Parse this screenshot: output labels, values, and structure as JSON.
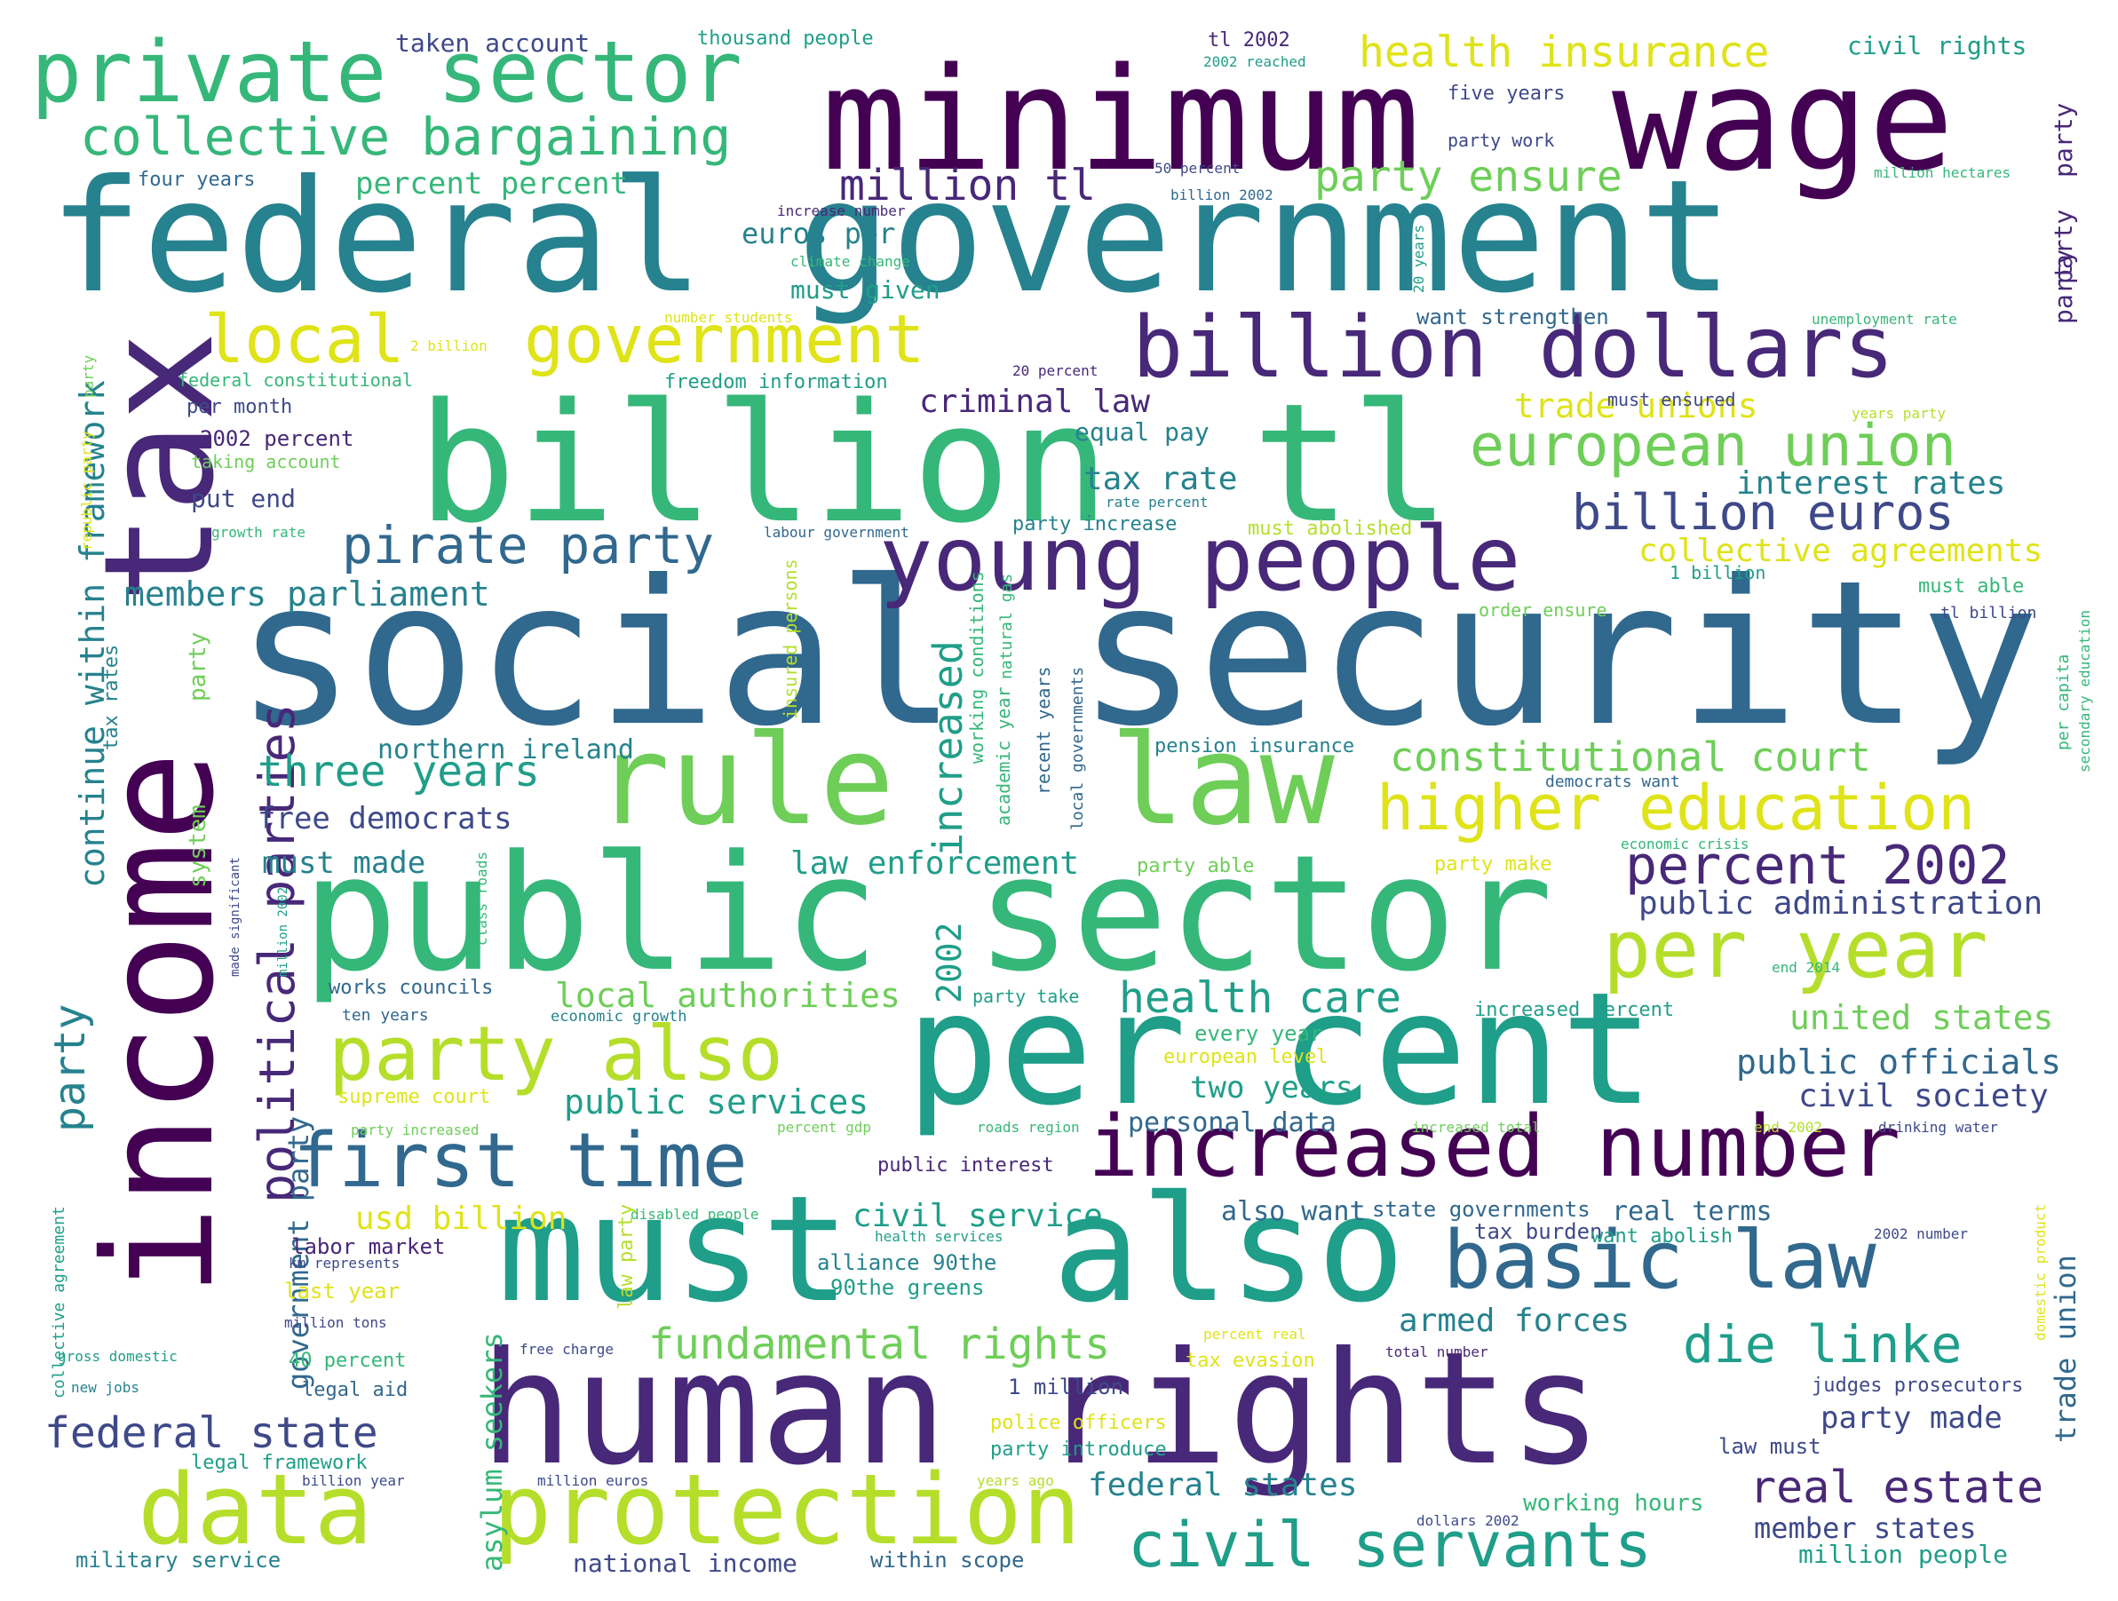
{
  "palette": {
    "c1": "#440154",
    "c2": "#482878",
    "c3": "#3e4989",
    "c4": "#31688e",
    "c5": "#26828e",
    "c6": "#1f9e89",
    "c7": "#35b779",
    "c8": "#6ece58",
    "c9": "#b5de2b",
    "c10": "#dfe318"
  },
  "words": [
    {
      "text": "social security",
      "color": "c4"
    },
    {
      "text": "federal government",
      "color": "c5"
    },
    {
      "text": "public sector",
      "color": "c7"
    },
    {
      "text": "human rights",
      "color": "c2"
    },
    {
      "text": "income",
      "color": "c1"
    },
    {
      "text": "tax",
      "color": "c2"
    },
    {
      "text": "billion",
      "color": "c7"
    },
    {
      "text": "tl",
      "color": "c7"
    },
    {
      "text": "minimum",
      "color": "c1"
    },
    {
      "text": "wage",
      "color": "c1"
    },
    {
      "text": "per cent",
      "color": "c6"
    },
    {
      "text": "must",
      "color": "c6"
    },
    {
      "text": "also",
      "color": "c6"
    },
    {
      "text": "rule",
      "color": "c8"
    },
    {
      "text": "law",
      "color": "c8"
    },
    {
      "text": "data",
      "color": "c9"
    },
    {
      "text": "protection",
      "color": "c9"
    },
    {
      "text": "young people",
      "color": "c2"
    },
    {
      "text": "billion dollars",
      "color": "c2"
    },
    {
      "text": "increased number",
      "color": "c1"
    },
    {
      "text": "first time",
      "color": "c4"
    },
    {
      "text": "party also",
      "color": "c9"
    },
    {
      "text": "basic law",
      "color": "c4"
    },
    {
      "text": "private sector",
      "color": "c7"
    },
    {
      "text": "government",
      "color": "c10"
    },
    {
      "text": "local",
      "color": "c10"
    },
    {
      "text": "per year",
      "color": "c9"
    },
    {
      "text": "higher education",
      "color": "c10"
    },
    {
      "text": "european union",
      "color": "c8"
    },
    {
      "text": "civil servants",
      "color": "c6"
    },
    {
      "text": "percent 2002",
      "color": "c2"
    },
    {
      "text": "collective bargaining",
      "color": "c7"
    },
    {
      "text": "pirate party",
      "color": "c4"
    },
    {
      "text": "billion euros",
      "color": "c3"
    },
    {
      "text": "political parties",
      "color": "c2"
    },
    {
      "text": "three years",
      "color": "c6"
    },
    {
      "text": "health insurance",
      "color": "c10"
    },
    {
      "text": "million tl",
      "color": "c2"
    },
    {
      "text": "die linke",
      "color": "c6"
    },
    {
      "text": "real estate",
      "color": "c2"
    },
    {
      "text": "fundamental rights",
      "color": "c8"
    },
    {
      "text": "party ensure",
      "color": "c8"
    },
    {
      "text": "constitutional court",
      "color": "c8"
    },
    {
      "text": "health care",
      "color": "c6"
    },
    {
      "text": "income",
      "color": "c1"
    },
    {
      "text": "federal state",
      "color": "c3"
    },
    {
      "text": "continue within framework",
      "color": "c5"
    },
    {
      "text": "increased",
      "color": "c6"
    },
    {
      "text": "party",
      "color": "c5"
    },
    {
      "text": "members parliament",
      "color": "c5"
    },
    {
      "text": "trade unions",
      "color": "c10"
    },
    {
      "text": "collective agreements",
      "color": "c10"
    },
    {
      "text": "interest rates",
      "color": "c5"
    },
    {
      "text": "public administration",
      "color": "c3"
    },
    {
      "text": "public officials",
      "color": "c4"
    },
    {
      "text": "civil society",
      "color": "c3"
    },
    {
      "text": "united states",
      "color": "c8"
    },
    {
      "text": "local authorities",
      "color": "c8"
    },
    {
      "text": "public services",
      "color": "c6"
    },
    {
      "text": "law enforcement",
      "color": "c6"
    },
    {
      "text": "criminal law",
      "color": "c2"
    },
    {
      "text": "tax rate",
      "color": "c5"
    },
    {
      "text": "northern ireland",
      "color": "c5"
    },
    {
      "text": "free democrats",
      "color": "c3"
    },
    {
      "text": "must made",
      "color": "c5"
    },
    {
      "text": "2002",
      "color": "c6"
    },
    {
      "text": "armed forces",
      "color": "c5"
    },
    {
      "text": "two years",
      "color": "c6"
    },
    {
      "text": "civil service",
      "color": "c6"
    },
    {
      "text": "usd billion",
      "color": "c10"
    },
    {
      "text": "asylum seekers",
      "color": "c7"
    },
    {
      "text": "federal states",
      "color": "c5"
    },
    {
      "text": "party made",
      "color": "c3"
    },
    {
      "text": "member states",
      "color": "c3"
    },
    {
      "text": "percent percent",
      "color": "c7"
    },
    {
      "text": "euros per",
      "color": "c5"
    },
    {
      "text": "must given",
      "color": "c6"
    },
    {
      "text": "equal pay",
      "color": "c5"
    },
    {
      "text": "put end",
      "color": "c3"
    },
    {
      "text": "2002 percent",
      "color": "c2"
    },
    {
      "text": "government party",
      "color": "c4"
    },
    {
      "text": "trade union",
      "color": "c4"
    },
    {
      "text": "personal data",
      "color": "c4"
    },
    {
      "text": "every year",
      "color": "c7"
    },
    {
      "text": "also want",
      "color": "c4"
    },
    {
      "text": "state governments",
      "color": "c4"
    },
    {
      "text": "real terms",
      "color": "c4"
    },
    {
      "text": "tax burden",
      "color": "c3"
    },
    {
      "text": "want abolish",
      "color": "c6"
    },
    {
      "text": "judges prosecutors",
      "color": "c3"
    },
    {
      "text": "million people",
      "color": "c6"
    },
    {
      "text": "working hours",
      "color": "c7"
    },
    {
      "text": "law must",
      "color": "c3"
    },
    {
      "text": "national income",
      "color": "c3"
    },
    {
      "text": "within scope",
      "color": "c4"
    },
    {
      "text": "military service",
      "color": "c5"
    },
    {
      "text": "legal framework",
      "color": "c6"
    },
    {
      "text": "police officers",
      "color": "c10"
    },
    {
      "text": "party introduce",
      "color": "c6"
    },
    {
      "text": "1 million",
      "color": "c3"
    },
    {
      "text": "alliance 90the",
      "color": "c5"
    },
    {
      "text": "90the greens",
      "color": "c6"
    },
    {
      "text": "labor market",
      "color": "c2"
    },
    {
      "text": "last year",
      "color": "c10"
    },
    {
      "text": "40 percent",
      "color": "c7"
    },
    {
      "text": "legal aid",
      "color": "c4"
    },
    {
      "text": "public interest",
      "color": "c2"
    },
    {
      "text": "system",
      "color": "c8"
    },
    {
      "text": "party",
      "color": "c8"
    },
    {
      "text": "taken account",
      "color": "c3"
    },
    {
      "text": "thousand people",
      "color": "c6"
    },
    {
      "text": "tl 2002",
      "color": "c2"
    },
    {
      "text": "civil rights",
      "color": "c6"
    },
    {
      "text": "five years",
      "color": "c3"
    },
    {
      "text": "party work",
      "color": "c3"
    },
    {
      "text": "four years",
      "color": "c4"
    },
    {
      "text": "want strengthen",
      "color": "c4"
    },
    {
      "text": "per month",
      "color": "c3"
    },
    {
      "text": "federal constitutional",
      "color": "c7"
    },
    {
      "text": "freedom information",
      "color": "c6"
    },
    {
      "text": "taking account",
      "color": "c8"
    },
    {
      "text": "must ensured",
      "color": "c3"
    },
    {
      "text": "works councils",
      "color": "c4"
    },
    {
      "text": "ten years",
      "color": "c4"
    },
    {
      "text": "economic growth",
      "color": "c5"
    },
    {
      "text": "party take",
      "color": "c6"
    },
    {
      "text": "increased percent",
      "color": "c6"
    },
    {
      "text": "pension insurance",
      "color": "c5"
    },
    {
      "text": "democrats want",
      "color": "c4"
    },
    {
      "text": "order ensure",
      "color": "c8"
    },
    {
      "text": "must able",
      "color": "c7"
    },
    {
      "text": "1 billion",
      "color": "c6"
    },
    {
      "text": "tl billion",
      "color": "c3"
    },
    {
      "text": "party able",
      "color": "c8"
    },
    {
      "text": "party make",
      "color": "c10"
    },
    {
      "text": "european level",
      "color": "c10"
    },
    {
      "text": "supreme court",
      "color": "c10"
    },
    {
      "text": "party increase",
      "color": "c5"
    },
    {
      "text": "must abolished",
      "color": "c9"
    },
    {
      "text": "tax evasion",
      "color": "c10"
    },
    {
      "text": "free charge",
      "color": "c3"
    },
    {
      "text": "total number",
      "color": "c2"
    },
    {
      "text": "percent real",
      "color": "c10"
    },
    {
      "text": "million euros",
      "color": "c3"
    },
    {
      "text": "billion year",
      "color": "c3"
    },
    {
      "text": "years ago",
      "color": "c9"
    },
    {
      "text": "dollars 2002",
      "color": "c3"
    },
    {
      "text": "gross domestic",
      "color": "c6"
    },
    {
      "text": "new jobs",
      "color": "c5"
    },
    {
      "text": "million tons",
      "color": "c3"
    },
    {
      "text": "km represents",
      "color": "c3"
    },
    {
      "text": "health services",
      "color": "c6"
    },
    {
      "text": "disabled people",
      "color": "c7"
    },
    {
      "text": "roads region",
      "color": "c7"
    },
    {
      "text": "percent gdp",
      "color": "c8"
    },
    {
      "text": "increased total",
      "color": "c8"
    },
    {
      "text": "end 2002",
      "color": "c9"
    },
    {
      "text": "drinking water",
      "color": "c3"
    },
    {
      "text": "2002 number",
      "color": "c3"
    },
    {
      "text": "economic crisis",
      "color": "c7"
    },
    {
      "text": "end 2014",
      "color": "c7"
    },
    {
      "text": "unemployment rate",
      "color": "c7"
    },
    {
      "text": "million hectares",
      "color": "c7"
    },
    {
      "text": "50 percent",
      "color": "c3"
    },
    {
      "text": "billion 2002",
      "color": "c4"
    },
    {
      "text": "increase number",
      "color": "c2"
    },
    {
      "text": "climate change",
      "color": "c7"
    },
    {
      "text": "number students",
      "color": "c10"
    },
    {
      "text": "2 billion",
      "color": "c10"
    },
    {
      "text": "20 percent",
      "color": "c2"
    },
    {
      "text": "rate percent",
      "color": "c5"
    },
    {
      "text": "growth rate",
      "color": "c7"
    },
    {
      "text": "labour government",
      "color": "c4"
    },
    {
      "text": "2002 reached",
      "color": "c6"
    },
    {
      "text": "years party",
      "color": "c9"
    },
    {
      "text": "collective agreement",
      "color": "c6"
    },
    {
      "text": "tax rates",
      "color": "c5"
    },
    {
      "text": "republic party",
      "color": "c10"
    },
    {
      "text": "party",
      "color": "c8"
    },
    {
      "text": "insured persons",
      "color": "c9"
    },
    {
      "text": "working conditions",
      "color": "c7"
    },
    {
      "text": "natural gas",
      "color": "c7"
    },
    {
      "text": "academic year",
      "color": "c7"
    },
    {
      "text": "recent years",
      "color": "c4"
    },
    {
      "text": "local governments",
      "color": "c4"
    },
    {
      "text": "20 years",
      "color": "c6"
    },
    {
      "text": "party",
      "color": "c2"
    },
    {
      "text": "party",
      "color": "c2"
    },
    {
      "text": "party",
      "color": "c2"
    },
    {
      "text": "per capita",
      "color": "c7"
    },
    {
      "text": "secondary education",
      "color": "c7"
    },
    {
      "text": "domestic product",
      "color": "c10"
    },
    {
      "text": "law party",
      "color": "c9"
    },
    {
      "text": "made significant",
      "color": "c3"
    },
    {
      "text": "million 2002",
      "color": "c6"
    },
    {
      "text": "class roads",
      "color": "c7"
    },
    {
      "text": "party increased",
      "color": "c8"
    }
  ]
}
